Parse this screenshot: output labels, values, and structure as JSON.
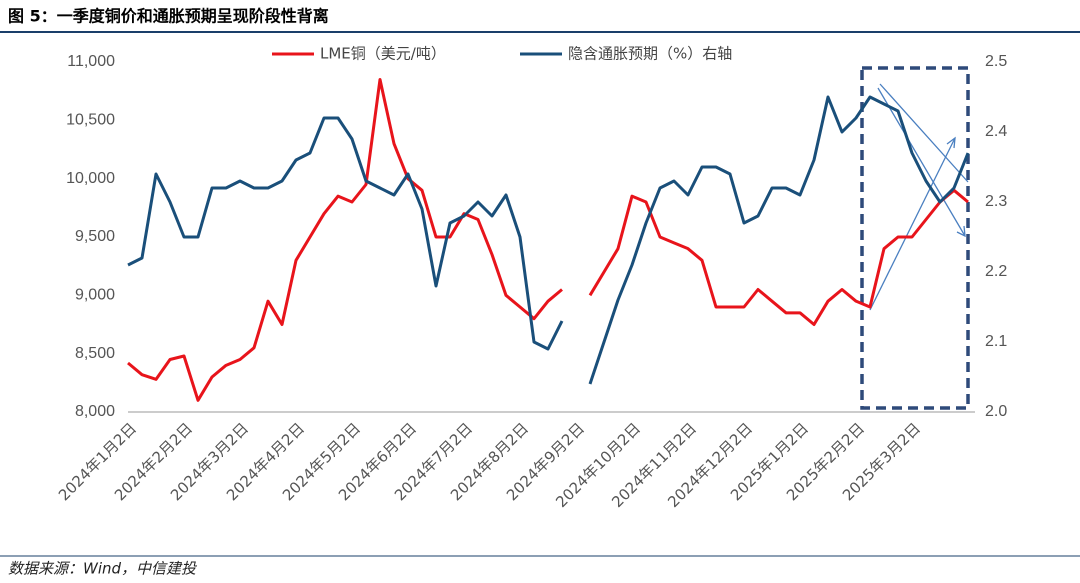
{
  "chart_data": {
    "type": "line",
    "title": "图 5：一季度铜价和通胀预期呈现阶段性背离",
    "source": "数据来源：Wind，中信建投",
    "categories": [
      "2024年1月2日",
      null,
      null,
      null,
      "2024年2月2日",
      null,
      null,
      null,
      "2024年3月2日",
      null,
      null,
      null,
      "2024年4月2日",
      null,
      null,
      null,
      "2024年5月2日",
      null,
      null,
      null,
      "2024年6月2日",
      null,
      null,
      null,
      "2024年7月2日",
      null,
      null,
      null,
      "2024年8月2日",
      null,
      null,
      null,
      "2024年9月2日",
      null,
      null,
      null,
      "2024年10月2日",
      null,
      null,
      null,
      "2024年11月2日",
      null,
      null,
      null,
      "2024年12月2日",
      null,
      null,
      null,
      "2025年1月2日",
      null,
      null,
      null,
      "2025年2月2日",
      null,
      null,
      null,
      "2025年3月2日",
      null,
      null,
      null,
      null
    ],
    "series": [
      {
        "name": "LME铜（美元/吨）",
        "color": "#e8141b",
        "axis": "y",
        "values": [
          8420,
          8320,
          8280,
          8450,
          8480,
          8100,
          8300,
          8400,
          8450,
          8550,
          8950,
          8750,
          9300,
          9500,
          9700,
          9850,
          9800,
          9950,
          10850,
          10300,
          10000,
          9900,
          9500,
          9500,
          9700,
          9650,
          9350,
          9000,
          8900,
          8800,
          8950,
          9050,
          null,
          9000,
          9200,
          9400,
          9850,
          9800,
          9500,
          9450,
          9400,
          9300,
          8900,
          8900,
          8900,
          9050,
          8950,
          8850,
          8850,
          8750,
          8950,
          9050,
          8950,
          8900,
          9400,
          9500,
          9500,
          9650,
          9800,
          9900,
          9800
        ]
      },
      {
        "name": "隐含通胀预期（%）右轴",
        "color": "#1a4f7a",
        "axis": "y2",
        "values": [
          2.21,
          2.22,
          2.34,
          2.3,
          2.25,
          2.25,
          2.32,
          2.32,
          2.33,
          2.32,
          2.32,
          2.33,
          2.36,
          2.37,
          2.42,
          2.42,
          2.39,
          2.33,
          2.32,
          2.31,
          2.34,
          2.29,
          2.18,
          2.27,
          2.28,
          2.3,
          2.28,
          2.31,
          2.25,
          2.1,
          2.09,
          2.13,
          null,
          2.04,
          2.1,
          2.16,
          2.21,
          2.27,
          2.32,
          2.33,
          2.31,
          2.35,
          2.35,
          2.34,
          2.27,
          2.28,
          2.32,
          2.32,
          2.31,
          2.36,
          2.45,
          2.4,
          2.42,
          2.45,
          2.44,
          2.43,
          2.37,
          2.33,
          2.3,
          2.32,
          2.37
        ]
      }
    ],
    "ylim": [
      8000,
      11000
    ],
    "yticks": [
      {
        "value": 8000,
        "label": "8,000"
      },
      {
        "value": 8500,
        "label": "8,500"
      },
      {
        "value": 9000,
        "label": "9,000"
      },
      {
        "value": 9500,
        "label": "9,500"
      },
      {
        "value": 10000,
        "label": "10,000"
      },
      {
        "value": 10500,
        "label": "10,500"
      },
      {
        "value": 11000,
        "label": "11,000"
      }
    ],
    "y2lim": [
      2.0,
      2.5
    ],
    "y2ticks": [
      {
        "value": 2,
        "label": "2.0"
      },
      2.1,
      2.2,
      2.3,
      2.4,
      2.5
    ],
    "legend": "top"
  }
}
